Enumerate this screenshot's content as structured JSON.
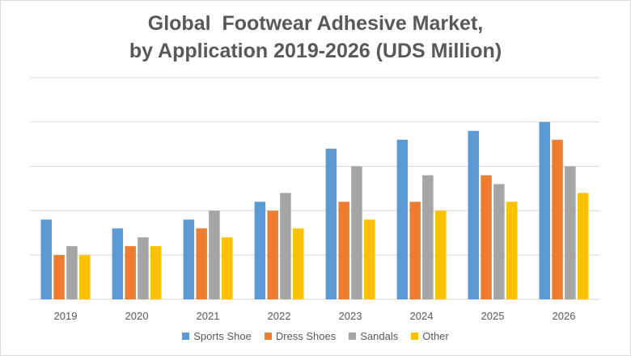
{
  "chart_data": {
    "type": "bar",
    "title_line1": "Global  Footwear Adhesive Market,",
    "title_line2": "by Application 2019-2026 (UDS Million)",
    "categories": [
      "2019",
      "2020",
      "2021",
      "2022",
      "2023",
      "2024",
      "2025",
      "2026"
    ],
    "series": [
      {
        "name": "Sports Shoe",
        "color": "#5b9bd5",
        "values": [
          9,
          8,
          9,
          11,
          17,
          18,
          19,
          20
        ]
      },
      {
        "name": "Dress Shoes",
        "color": "#ed7d31",
        "values": [
          5,
          6,
          8,
          10,
          11,
          11,
          14,
          18
        ]
      },
      {
        "name": "Sandals",
        "color": "#a5a5a5",
        "values": [
          6,
          7,
          10,
          12,
          15,
          14,
          13,
          15
        ]
      },
      {
        "name": "Other",
        "color": "#ffc000",
        "values": [
          5,
          6,
          7,
          8,
          9,
          10,
          11,
          12
        ]
      }
    ],
    "ylim": [
      0,
      25
    ],
    "y_gridlines": [
      0,
      5,
      10,
      15,
      20,
      25
    ],
    "grid": true,
    "legend_position": "bottom"
  }
}
